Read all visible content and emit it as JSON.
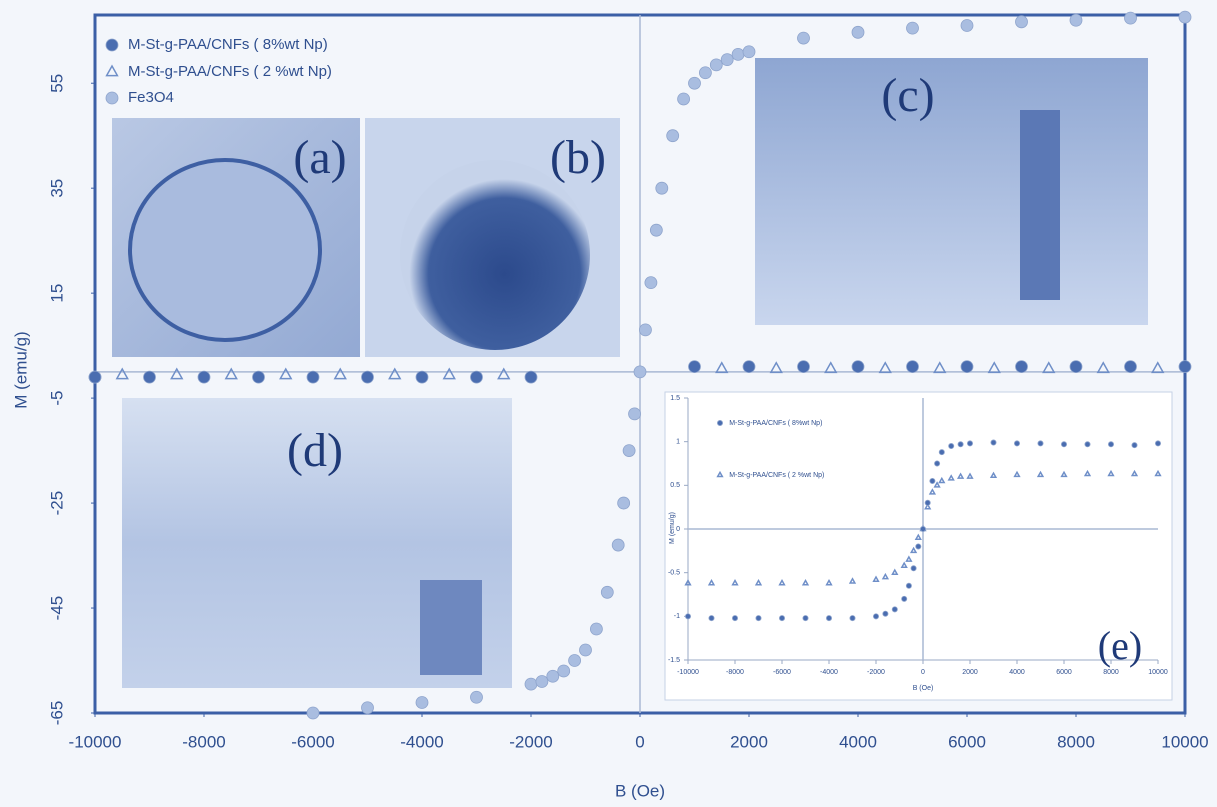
{
  "chart_data": [
    {
      "type": "scatter",
      "x_label": "B (Oe)",
      "y_label": "M (emu/g)",
      "xlim": [
        -10000,
        10000
      ],
      "xticks": [
        -10000,
        -8000,
        -6000,
        -4000,
        -2000,
        0,
        2000,
        4000,
        6000,
        8000,
        10000
      ],
      "ylim": [
        -65,
        68
      ],
      "yticks": [
        -65,
        -45,
        -25,
        -5,
        15,
        35,
        55
      ],
      "legend_position": "upper left",
      "annotations": [
        "(a)",
        "(b)",
        "(c)",
        "(d)"
      ],
      "series": [
        {
          "name": "M-St-g-PAA/CNFs ( 8%wt Np)",
          "color": "#4a6db0",
          "marker": "circle",
          "x": [
            -10000,
            -9000,
            -8000,
            -7000,
            -6000,
            -5000,
            -4000,
            -3000,
            -2000,
            1000,
            2000,
            3000,
            4000,
            5000,
            6000,
            7000,
            8000,
            9000,
            10000
          ],
          "values": [
            -1,
            -1,
            -1,
            -1,
            -1,
            -1,
            -1,
            -1,
            -1,
            1,
            1,
            1,
            1,
            1,
            1,
            1,
            1,
            1,
            1
          ]
        },
        {
          "name": "M-St-g-PAA/CNFs ( 2 %wt Np)",
          "color": "#6f8fc8",
          "marker": "triangle",
          "x": [
            -9500,
            -8500,
            -7500,
            -6500,
            -5500,
            -4500,
            -3500,
            -2500,
            1500,
            2500,
            3500,
            4500,
            5500,
            6500,
            7500,
            8500,
            9500
          ],
          "values": [
            -0.6,
            -0.6,
            -0.6,
            -0.6,
            -0.6,
            -0.6,
            -0.6,
            -0.6,
            0.6,
            0.6,
            0.6,
            0.6,
            0.6,
            0.6,
            0.6,
            0.6,
            0.6
          ]
        },
        {
          "name": "Fe3O4",
          "color": "#a9bde0",
          "marker": "circle",
          "x": [
            -10000,
            -6000,
            -5000,
            -4000,
            -3000,
            -2000,
            -1800,
            -1600,
            -1400,
            -1200,
            -1000,
            -800,
            -600,
            -400,
            -300,
            -200,
            -100,
            0,
            100,
            200,
            300,
            400,
            600,
            800,
            1000,
            1200,
            1400,
            1600,
            1800,
            2000,
            3000,
            4000,
            5000,
            6000,
            7000,
            8000,
            9000,
            10000
          ],
          "values": [
            -1,
            -65,
            -64,
            -63,
            -62,
            -59.5,
            -59,
            -58,
            -57,
            -55,
            -53,
            -49,
            -42,
            -33,
            -25,
            -15,
            -8,
            0,
            8,
            17,
            27,
            35,
            45,
            52,
            55,
            57,
            58.5,
            59.5,
            60.5,
            61,
            63.6,
            64.7,
            65.5,
            66,
            66.7,
            67,
            67.4,
            67.6
          ]
        }
      ]
    },
    {
      "type": "scatter",
      "x_label": "B (Oe)",
      "y_label": "M (emu/g)",
      "xlim": [
        -10000,
        10000
      ],
      "xticks": [
        -10000,
        -8000,
        -6000,
        -4000,
        -2000,
        0,
        2000,
        4000,
        6000,
        8000,
        10000
      ],
      "ylim": [
        -1.5,
        1.5
      ],
      "yticks": [
        -1.5,
        -1,
        -0.5,
        0,
        0.5,
        1,
        1.5
      ],
      "legend_position": "upper left",
      "annotations": [
        "(e)"
      ],
      "series": [
        {
          "name": "M-St-g-PAA/CNFs ( 8%wt Np)",
          "color": "#4a6db0",
          "marker": "circle",
          "x": [
            -10000,
            -9000,
            -8000,
            -7000,
            -6000,
            -5000,
            -4000,
            -3000,
            -2000,
            -1600,
            -1200,
            -800,
            -600,
            -400,
            -200,
            0,
            200,
            400,
            600,
            800,
            1200,
            1600,
            2000,
            3000,
            4000,
            5000,
            6000,
            7000,
            8000,
            9000,
            10000
          ],
          "values": [
            -1,
            -1.02,
            -1.02,
            -1.02,
            -1.02,
            -1.02,
            -1.02,
            -1.02,
            -1,
            -0.97,
            -0.92,
            -0.8,
            -0.65,
            -0.45,
            -0.2,
            0,
            0.3,
            0.55,
            0.75,
            0.88,
            0.95,
            0.97,
            0.98,
            0.99,
            0.98,
            0.98,
            0.97,
            0.97,
            0.97,
            0.96,
            0.98
          ]
        },
        {
          "name": "M-St-g-PAA/CNFs ( 2 %wt Np)",
          "color": "#6f8fc8",
          "marker": "triangle",
          "x": [
            -10000,
            -9000,
            -8000,
            -7000,
            -6000,
            -5000,
            -4000,
            -3000,
            -2000,
            -1600,
            -1200,
            -800,
            -600,
            -400,
            -200,
            0,
            200,
            400,
            600,
            800,
            1200,
            1600,
            2000,
            3000,
            4000,
            5000,
            6000,
            7000,
            8000,
            9000,
            10000
          ],
          "values": [
            -0.62,
            -0.62,
            -0.62,
            -0.62,
            -0.62,
            -0.62,
            -0.62,
            -0.6,
            -0.58,
            -0.55,
            -0.5,
            -0.42,
            -0.35,
            -0.25,
            -0.1,
            0,
            0.25,
            0.42,
            0.5,
            0.55,
            0.58,
            0.6,
            0.6,
            0.61,
            0.62,
            0.62,
            0.62,
            0.63,
            0.63,
            0.63,
            0.63
          ]
        }
      ]
    }
  ]
}
